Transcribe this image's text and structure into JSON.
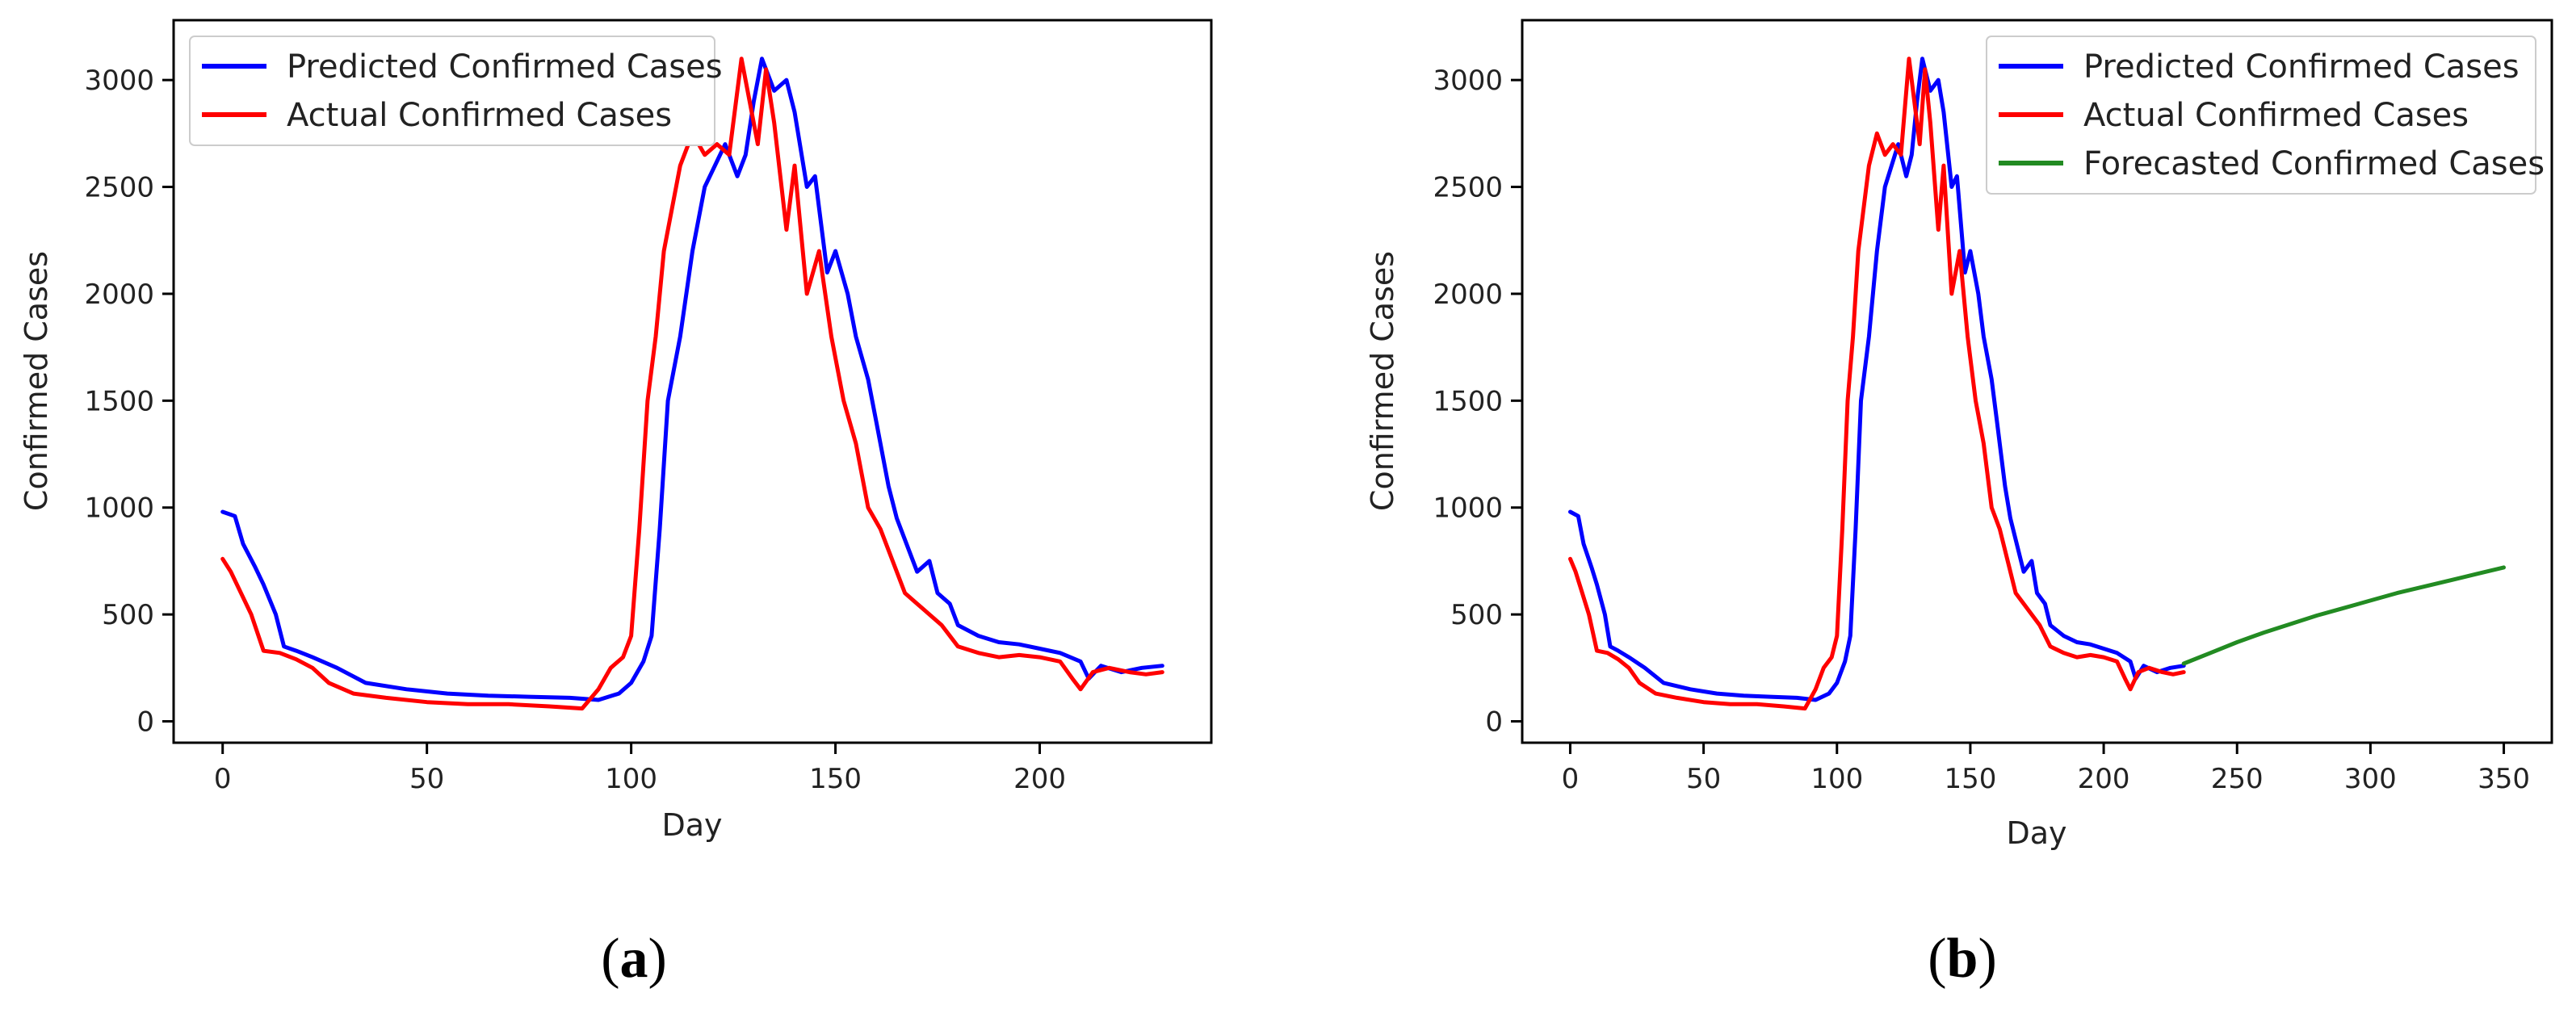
{
  "panels": [
    {
      "label_open": "(",
      "label_letter": "a",
      "label_close": ")"
    },
    {
      "label_open": "(",
      "label_letter": "b",
      "label_close": ")"
    }
  ],
  "chart_data": [
    {
      "type": "line",
      "xlabel": "Day",
      "ylabel": "Confirmed Cases",
      "xlim": [
        -12,
        242
      ],
      "ylim": [
        -100,
        3280
      ],
      "xticks": [
        0,
        50,
        100,
        150,
        200
      ],
      "yticks": [
        0,
        500,
        1000,
        1500,
        2000,
        2500,
        3000
      ],
      "grid": false,
      "legend_position": "top-left",
      "series": [
        {
          "name": "Predicted Confirmed Cases",
          "color": "#0000ff",
          "points": [
            [
              0,
              980
            ],
            [
              3,
              960
            ],
            [
              5,
              830
            ],
            [
              8,
              720
            ],
            [
              10,
              640
            ],
            [
              13,
              500
            ],
            [
              15,
              350
            ],
            [
              18,
              330
            ],
            [
              22,
              300
            ],
            [
              28,
              250
            ],
            [
              35,
              180
            ],
            [
              45,
              150
            ],
            [
              55,
              130
            ],
            [
              65,
              120
            ],
            [
              75,
              115
            ],
            [
              85,
              110
            ],
            [
              92,
              100
            ],
            [
              97,
              130
            ],
            [
              100,
              180
            ],
            [
              103,
              280
            ],
            [
              105,
              400
            ],
            [
              107,
              900
            ],
            [
              109,
              1500
            ],
            [
              112,
              1800
            ],
            [
              115,
              2200
            ],
            [
              118,
              2500
            ],
            [
              120,
              2580
            ],
            [
              123,
              2700
            ],
            [
              126,
              2550
            ],
            [
              128,
              2650
            ],
            [
              130,
              2900
            ],
            [
              132,
              3100
            ],
            [
              135,
              2950
            ],
            [
              138,
              3000
            ],
            [
              140,
              2850
            ],
            [
              143,
              2500
            ],
            [
              145,
              2550
            ],
            [
              148,
              2100
            ],
            [
              150,
              2200
            ],
            [
              153,
              2000
            ],
            [
              155,
              1800
            ],
            [
              158,
              1600
            ],
            [
              160,
              1400
            ],
            [
              163,
              1100
            ],
            [
              165,
              950
            ],
            [
              168,
              800
            ],
            [
              170,
              700
            ],
            [
              173,
              750
            ],
            [
              175,
              600
            ],
            [
              178,
              550
            ],
            [
              180,
              450
            ],
            [
              185,
              400
            ],
            [
              190,
              370
            ],
            [
              195,
              360
            ],
            [
              200,
              340
            ],
            [
              205,
              320
            ],
            [
              210,
              280
            ],
            [
              212,
              200
            ],
            [
              215,
              260
            ],
            [
              220,
              230
            ],
            [
              225,
              250
            ],
            [
              230,
              260
            ]
          ]
        },
        {
          "name": "Actual Confirmed Cases",
          "color": "#ff0000",
          "points": [
            [
              0,
              760
            ],
            [
              2,
              700
            ],
            [
              4,
              620
            ],
            [
              7,
              500
            ],
            [
              10,
              330
            ],
            [
              14,
              320
            ],
            [
              18,
              290
            ],
            [
              22,
              250
            ],
            [
              26,
              180
            ],
            [
              32,
              130
            ],
            [
              40,
              110
            ],
            [
              50,
              90
            ],
            [
              60,
              80
            ],
            [
              70,
              80
            ],
            [
              80,
              70
            ],
            [
              88,
              60
            ],
            [
              92,
              150
            ],
            [
              95,
              250
            ],
            [
              98,
              300
            ],
            [
              100,
              400
            ],
            [
              102,
              900
            ],
            [
              104,
              1500
            ],
            [
              106,
              1800
            ],
            [
              108,
              2200
            ],
            [
              110,
              2400
            ],
            [
              112,
              2600
            ],
            [
              115,
              2750
            ],
            [
              118,
              2650
            ],
            [
              121,
              2700
            ],
            [
              124,
              2650
            ],
            [
              127,
              3100
            ],
            [
              129,
              2900
            ],
            [
              131,
              2700
            ],
            [
              133,
              3050
            ],
            [
              135,
              2800
            ],
            [
              138,
              2300
            ],
            [
              140,
              2600
            ],
            [
              143,
              2000
            ],
            [
              146,
              2200
            ],
            [
              149,
              1800
            ],
            [
              152,
              1500
            ],
            [
              155,
              1300
            ],
            [
              158,
              1000
            ],
            [
              161,
              900
            ],
            [
              164,
              750
            ],
            [
              167,
              600
            ],
            [
              170,
              550
            ],
            [
              173,
              500
            ],
            [
              176,
              450
            ],
            [
              180,
              350
            ],
            [
              185,
              320
            ],
            [
              190,
              300
            ],
            [
              195,
              310
            ],
            [
              200,
              300
            ],
            [
              205,
              280
            ],
            [
              208,
              200
            ],
            [
              210,
              150
            ],
            [
              213,
              230
            ],
            [
              217,
              250
            ],
            [
              222,
              230
            ],
            [
              226,
              220
            ],
            [
              230,
              230
            ]
          ]
        }
      ]
    },
    {
      "type": "line",
      "xlabel": "Day",
      "ylabel": "Confirmed Cases",
      "xlim": [
        -18,
        368
      ],
      "ylim": [
        -100,
        3280
      ],
      "xticks": [
        0,
        50,
        100,
        150,
        200,
        250,
        300,
        350
      ],
      "yticks": [
        0,
        500,
        1000,
        1500,
        2000,
        2500,
        3000
      ],
      "grid": false,
      "legend_position": "top-right",
      "series": [
        {
          "name": "Predicted Confirmed Cases",
          "color": "#0000ff",
          "points": [
            [
              0,
              980
            ],
            [
              3,
              960
            ],
            [
              5,
              830
            ],
            [
              8,
              720
            ],
            [
              10,
              640
            ],
            [
              13,
              500
            ],
            [
              15,
              350
            ],
            [
              18,
              330
            ],
            [
              22,
              300
            ],
            [
              28,
              250
            ],
            [
              35,
              180
            ],
            [
              45,
              150
            ],
            [
              55,
              130
            ],
            [
              65,
              120
            ],
            [
              75,
              115
            ],
            [
              85,
              110
            ],
            [
              92,
              100
            ],
            [
              97,
              130
            ],
            [
              100,
              180
            ],
            [
              103,
              280
            ],
            [
              105,
              400
            ],
            [
              107,
              900
            ],
            [
              109,
              1500
            ],
            [
              112,
              1800
            ],
            [
              115,
              2200
            ],
            [
              118,
              2500
            ],
            [
              120,
              2580
            ],
            [
              123,
              2700
            ],
            [
              126,
              2550
            ],
            [
              128,
              2650
            ],
            [
              130,
              2900
            ],
            [
              132,
              3100
            ],
            [
              135,
              2950
            ],
            [
              138,
              3000
            ],
            [
              140,
              2850
            ],
            [
              143,
              2500
            ],
            [
              145,
              2550
            ],
            [
              148,
              2100
            ],
            [
              150,
              2200
            ],
            [
              153,
              2000
            ],
            [
              155,
              1800
            ],
            [
              158,
              1600
            ],
            [
              160,
              1400
            ],
            [
              163,
              1100
            ],
            [
              165,
              950
            ],
            [
              168,
              800
            ],
            [
              170,
              700
            ],
            [
              173,
              750
            ],
            [
              175,
              600
            ],
            [
              178,
              550
            ],
            [
              180,
              450
            ],
            [
              185,
              400
            ],
            [
              190,
              370
            ],
            [
              195,
              360
            ],
            [
              200,
              340
            ],
            [
              205,
              320
            ],
            [
              210,
              280
            ],
            [
              212,
              200
            ],
            [
              215,
              260
            ],
            [
              220,
              230
            ],
            [
              225,
              250
            ],
            [
              230,
              260
            ]
          ]
        },
        {
          "name": "Actual Confirmed Cases",
          "color": "#ff0000",
          "points": [
            [
              0,
              760
            ],
            [
              2,
              700
            ],
            [
              4,
              620
            ],
            [
              7,
              500
            ],
            [
              10,
              330
            ],
            [
              14,
              320
            ],
            [
              18,
              290
            ],
            [
              22,
              250
            ],
            [
              26,
              180
            ],
            [
              32,
              130
            ],
            [
              40,
              110
            ],
            [
              50,
              90
            ],
            [
              60,
              80
            ],
            [
              70,
              80
            ],
            [
              80,
              70
            ],
            [
              88,
              60
            ],
            [
              92,
              150
            ],
            [
              95,
              250
            ],
            [
              98,
              300
            ],
            [
              100,
              400
            ],
            [
              102,
              900
            ],
            [
              104,
              1500
            ],
            [
              106,
              1800
            ],
            [
              108,
              2200
            ],
            [
              110,
              2400
            ],
            [
              112,
              2600
            ],
            [
              115,
              2750
            ],
            [
              118,
              2650
            ],
            [
              121,
              2700
            ],
            [
              124,
              2650
            ],
            [
              127,
              3100
            ],
            [
              129,
              2900
            ],
            [
              131,
              2700
            ],
            [
              133,
              3050
            ],
            [
              135,
              2800
            ],
            [
              138,
              2300
            ],
            [
              140,
              2600
            ],
            [
              143,
              2000
            ],
            [
              146,
              2200
            ],
            [
              149,
              1800
            ],
            [
              152,
              1500
            ],
            [
              155,
              1300
            ],
            [
              158,
              1000
            ],
            [
              161,
              900
            ],
            [
              164,
              750
            ],
            [
              167,
              600
            ],
            [
              170,
              550
            ],
            [
              173,
              500
            ],
            [
              176,
              450
            ],
            [
              180,
              350
            ],
            [
              185,
              320
            ],
            [
              190,
              300
            ],
            [
              195,
              310
            ],
            [
              200,
              300
            ],
            [
              205,
              280
            ],
            [
              208,
              200
            ],
            [
              210,
              150
            ],
            [
              213,
              230
            ],
            [
              217,
              250
            ],
            [
              222,
              230
            ],
            [
              226,
              220
            ],
            [
              230,
              230
            ]
          ]
        },
        {
          "name": "Forecasted Confirmed Cases",
          "color": "#228b22",
          "points": [
            [
              230,
              270
            ],
            [
              240,
              320
            ],
            [
              250,
              370
            ],
            [
              260,
              415
            ],
            [
              270,
              455
            ],
            [
              280,
              495
            ],
            [
              290,
              530
            ],
            [
              300,
              565
            ],
            [
              310,
              600
            ],
            [
              320,
              630
            ],
            [
              330,
              660
            ],
            [
              340,
              690
            ],
            [
              350,
              720
            ]
          ]
        }
      ]
    }
  ]
}
